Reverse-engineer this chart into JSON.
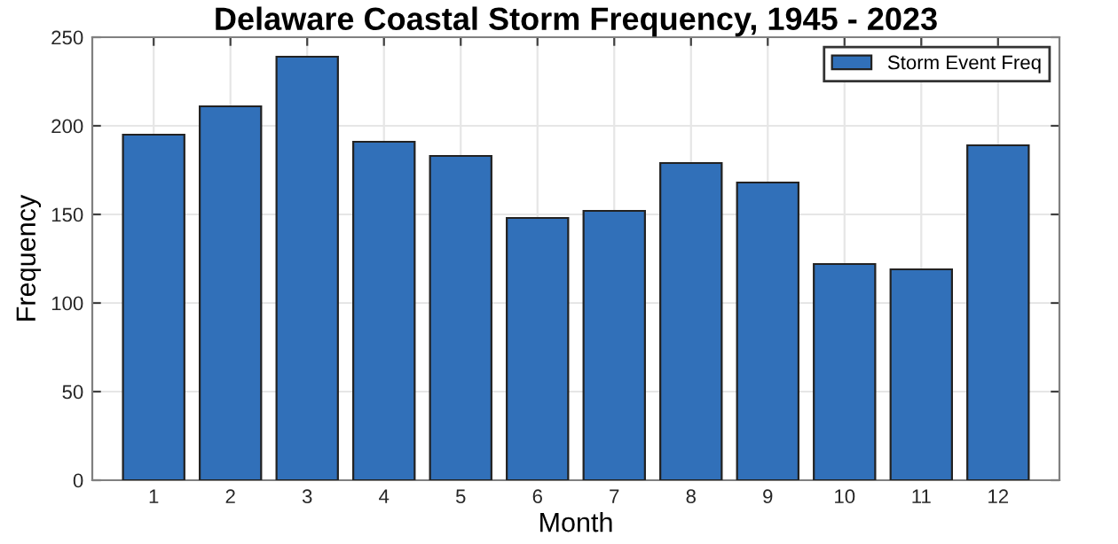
{
  "chart_data": {
    "type": "bar",
    "title": "Delaware Coastal Storm Frequency, 1945 - 2023",
    "xlabel": "Month",
    "ylabel": "Frequency",
    "categories": [
      "1",
      "2",
      "3",
      "4",
      "5",
      "6",
      "7",
      "8",
      "9",
      "10",
      "11",
      "12"
    ],
    "series": [
      {
        "name": "Storm Event Freq",
        "color": "#3170b9",
        "values": [
          195,
          211,
          239,
          191,
          183,
          148,
          152,
          179,
          168,
          122,
          119,
          189
        ]
      }
    ],
    "ylim": [
      0,
      250
    ],
    "yticks": [
      0,
      50,
      100,
      150,
      200,
      250
    ],
    "grid": true,
    "legend": "top right"
  }
}
